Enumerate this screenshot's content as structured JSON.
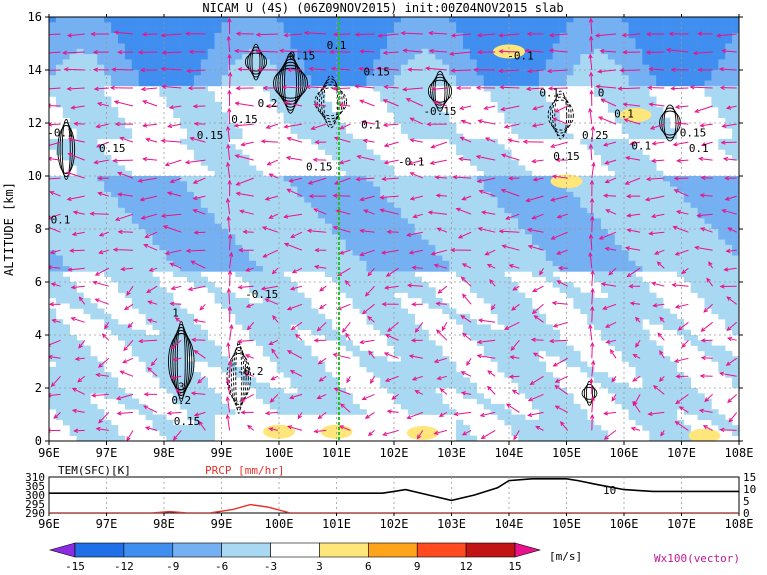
{
  "title": "NICAM U (4S) (06Z09NOV2015) init:00Z04NOV2015 slab",
  "chart_data": [
    {
      "type": "heatmap",
      "name": "main-cross-section",
      "ylabel": "ALTITUDE [km]",
      "xlim": [
        96,
        108
      ],
      "ylim": [
        0,
        16
      ],
      "grid": true,
      "x_ticks": [
        "96E",
        "97E",
        "98E",
        "99E",
        "100E",
        "101E",
        "102E",
        "103E",
        "104E",
        "105E",
        "106E",
        "107E",
        "108E"
      ],
      "y_ticks": [
        "0",
        "2",
        "4",
        "6",
        "8",
        "10",
        "12",
        "14",
        "16"
      ],
      "reference_line_lon": 101.0,
      "contour_labels": [
        {
          "text": "0.15",
          "lon": 97.1,
          "alt": 10.9
        },
        {
          "text": "0.1",
          "lon": 96.2,
          "alt": 8.2
        },
        {
          "text": "-0.1",
          "lon": 96.2,
          "alt": 11.5
        },
        {
          "text": "0.2",
          "lon": 99.8,
          "alt": 12.6
        },
        {
          "text": "0.15",
          "lon": 99.4,
          "alt": 12.0
        },
        {
          "text": "0.15",
          "lon": 98.8,
          "alt": 11.4
        },
        {
          "text": "0.15",
          "lon": 100.7,
          "alt": 10.2
        },
        {
          "text": "0.15",
          "lon": 100.4,
          "alt": 14.4
        },
        {
          "text": "0.1",
          "lon": 101.0,
          "alt": 14.8
        },
        {
          "text": "0.15",
          "lon": 101.7,
          "alt": 13.8
        },
        {
          "text": "0.1",
          "lon": 101.6,
          "alt": 11.8
        },
        {
          "text": "-0.1",
          "lon": 102.3,
          "alt": 10.4
        },
        {
          "text": "-0.15",
          "lon": 102.8,
          "alt": 12.3
        },
        {
          "text": "-0.1",
          "lon": 104.2,
          "alt": 14.4
        },
        {
          "text": "0.1",
          "lon": 104.7,
          "alt": 13.0
        },
        {
          "text": "0",
          "lon": 105.6,
          "alt": 13.0
        },
        {
          "text": "0.25",
          "lon": 105.5,
          "alt": 11.4
        },
        {
          "text": "0.15",
          "lon": 105.0,
          "alt": 10.6
        },
        {
          "text": "0.1",
          "lon": 106.0,
          "alt": 12.2
        },
        {
          "text": "0.15",
          "lon": 107.2,
          "alt": 11.5
        },
        {
          "text": "0.1",
          "lon": 107.3,
          "alt": 10.9
        },
        {
          "text": "0.1",
          "lon": 106.3,
          "alt": 11.0
        },
        {
          "text": "-0.15",
          "lon": 99.7,
          "alt": 5.4
        },
        {
          "text": "1",
          "lon": 98.2,
          "alt": 4.7
        },
        {
          "text": "-0.2",
          "lon": 99.5,
          "alt": 2.5
        },
        {
          "text": "0.2",
          "lon": 98.3,
          "alt": 1.4
        },
        {
          "text": "0.15",
          "lon": 98.4,
          "alt": 0.6
        },
        {
          "text": "3",
          "lon": 98.3,
          "alt": 1.9
        }
      ],
      "colorbar": {
        "levels": [
          "-15",
          "-12",
          "-9",
          "-6",
          "-3",
          "3",
          "6",
          "9",
          "12",
          "15"
        ],
        "units": "[m/s]",
        "colors": [
          "#8b2be2",
          "#1e6fe8",
          "#3f8ef0",
          "#74b0f2",
          "#a9d8f3",
          "#ffffff",
          "#ffe67a",
          "#ffa31a",
          "#ff4b1f",
          "#c31414",
          "#e8138c"
        ],
        "vector_label": "Wx100(vector)"
      }
    },
    {
      "type": "line",
      "name": "surface-panel",
      "left_label": "TEM(SFC)[K]",
      "right_label": "PRCP [mm/hr]",
      "x_ticks": [
        "96E",
        "97E",
        "98E",
        "99E",
        "100E",
        "101E",
        "102E",
        "103E",
        "104E",
        "105E",
        "106E",
        "107E",
        "108E"
      ],
      "y_left_ticks": [
        "310",
        "305",
        "300",
        "295",
        "290"
      ],
      "y_right_ticks": [
        "15",
        "10",
        "5",
        "0"
      ],
      "annotation": "10",
      "series": [
        {
          "name": "TEM(SFC)",
          "color": "#000000",
          "unit": "K",
          "x": [
            96,
            97,
            98,
            99,
            100,
            101,
            101.8,
            102,
            102.2,
            102.6,
            103,
            103.4,
            103.8,
            104,
            104.4,
            105,
            105.2,
            105.5,
            106,
            106.5,
            107,
            108
          ],
          "y": [
            301,
            301,
            301,
            301,
            301,
            301,
            301,
            302,
            303,
            300,
            297,
            300,
            304,
            308,
            309,
            309,
            308,
            306,
            303,
            302,
            302,
            302
          ]
        },
        {
          "name": "PRCP",
          "color": "#e8302b",
          "unit": "mm/hr",
          "x": [
            96,
            97,
            97.8,
            98.1,
            98.4,
            98.8,
            99.2,
            99.5,
            99.8,
            100.2,
            101,
            102,
            103,
            104,
            105,
            106,
            107,
            108
          ],
          "y": [
            0,
            0,
            0,
            0.6,
            0,
            0,
            1.5,
            3.5,
            2.5,
            0,
            0,
            0,
            0,
            0,
            0,
            0,
            0,
            0
          ]
        }
      ]
    }
  ]
}
